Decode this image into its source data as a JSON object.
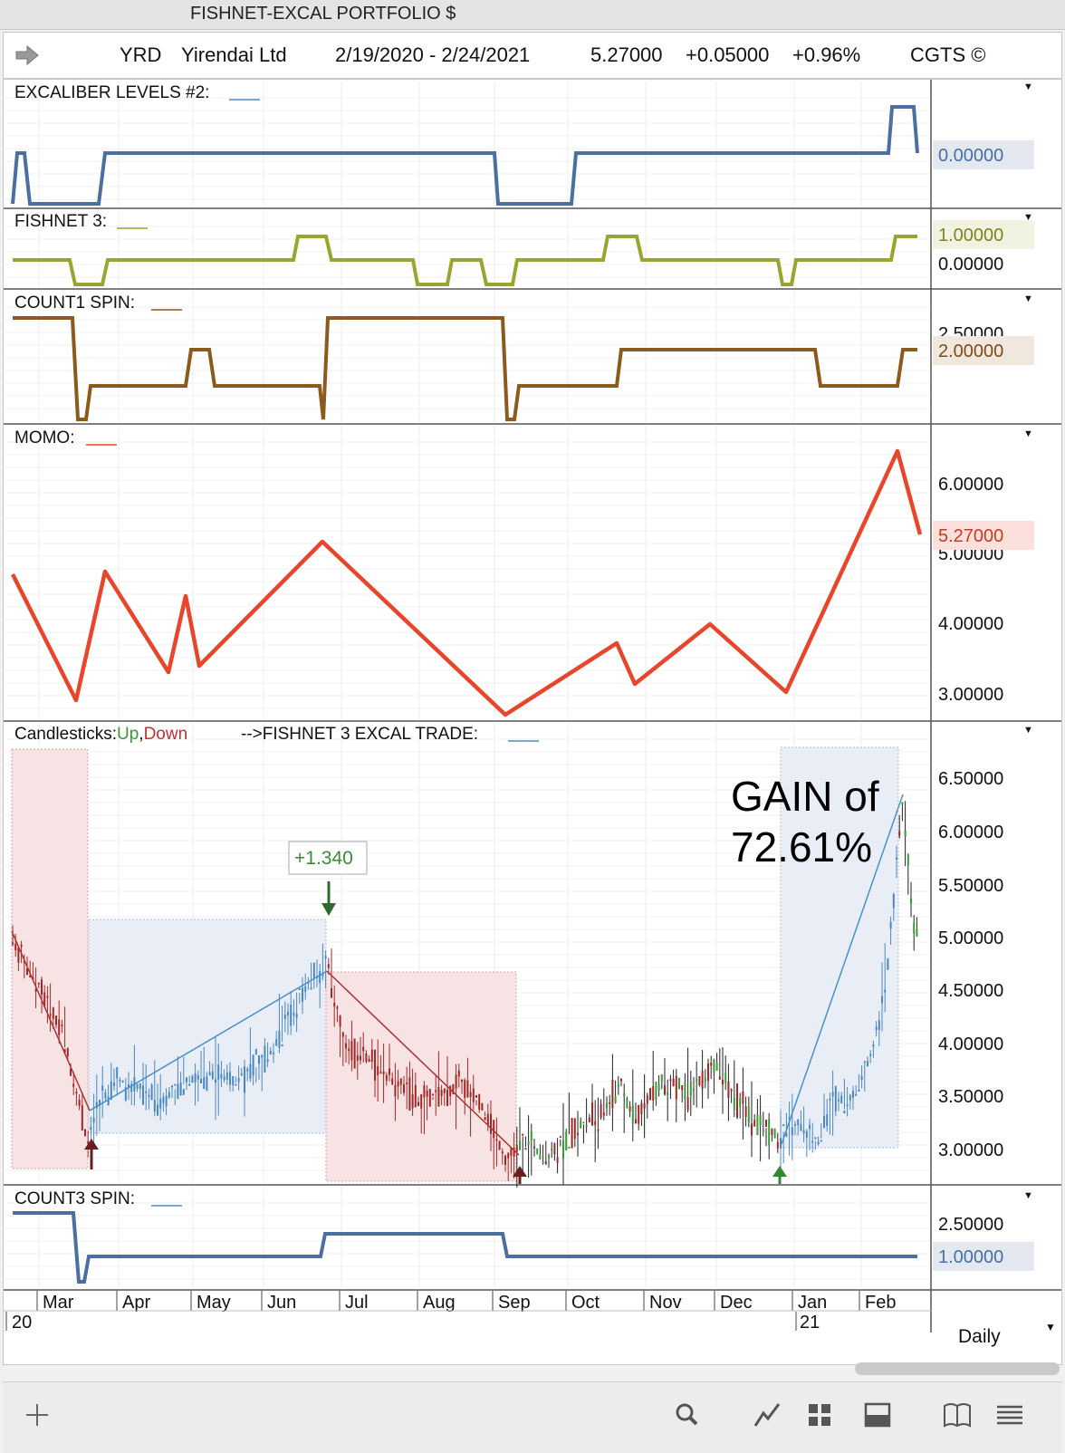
{
  "window": {
    "title": "FISHNET-EXCAL PORTFOLIO $"
  },
  "info": {
    "symbol": "YRD",
    "company": "Yirendai Ltd",
    "date_range": "2/19/2020 - 2/24/2021",
    "last": "5.27000",
    "change": "+0.05000",
    "change_pct": "+0.96%",
    "copyright": "CGTS ©"
  },
  "panels": {
    "excal": {
      "label": "EXCALIBER LEVELS #2:",
      "value": "0.00000",
      "color": "#4a6fa0"
    },
    "fishnet": {
      "label": "FISHNET 3:",
      "value_top": "1.00000",
      "value_bottom": "0.00000",
      "color": "#9aa530"
    },
    "count1": {
      "label": "COUNT1 SPIN:",
      "value": "2.00000",
      "value_hidden": "2.50000",
      "color": "#8b5a1c"
    },
    "momo": {
      "label": "MOMO:",
      "value": "5.27000",
      "ticks": [
        "6.00000",
        "5.00000",
        "4.00000",
        "3.00000"
      ],
      "color": "#e8452a"
    },
    "candles": {
      "label_prefix": "Candlesticks:",
      "up_label": "Up",
      "comma": ",",
      "down_label": "Down",
      "trade_label": "-->FISHNET 3 EXCAL TRADE:",
      "ticks": [
        "6.50000",
        "6.00000",
        "5.50000",
        "5.00000",
        "4.50000",
        "4.00000",
        "3.50000",
        "3.00000"
      ],
      "trade_gain_label": "+1.340",
      "gain_line1": "GAIN of",
      "gain_line2": "72.61%"
    },
    "count3": {
      "label": "COUNT3 SPIN:",
      "value": "1.00000",
      "tick": "2.50000",
      "color": "#4a6fa0"
    }
  },
  "xaxis": {
    "months": [
      "Mar",
      "Apr",
      "May",
      "Jun",
      "Jul",
      "Aug",
      "Sep",
      "Oct",
      "Nov",
      "Dec",
      "Jan",
      "Feb"
    ],
    "years": [
      "20",
      "21"
    ]
  },
  "period": "Daily",
  "colors": {
    "up": "#3a9a3a",
    "down": "#a02828",
    "trade_blue": "#4a8fc8",
    "panel_border": "#555555"
  },
  "toolbar": [
    "plus-icon",
    "search-icon",
    "chart-line-icon",
    "grid-icon",
    "panel-icon",
    "book-icon",
    "menu-icon"
  ]
}
